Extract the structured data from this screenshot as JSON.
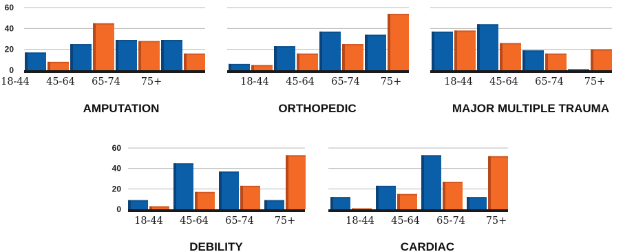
{
  "colors": {
    "series_a": "#0a5fa8",
    "series_a_shade": "#0b4378",
    "series_b": "#f26a26",
    "series_b_shade": "#b9481a"
  },
  "chart_data": [
    {
      "type": "bar",
      "title": "AMPUTATION",
      "categories": [
        "18-44",
        "45-64",
        "65-74",
        "75+"
      ],
      "series": [
        {
          "values": [
            17,
            25,
            29,
            29
          ]
        },
        {
          "values": [
            8,
            45,
            28,
            16
          ]
        }
      ],
      "ylim": [
        0,
        60
      ],
      "yticks": [
        0,
        20,
        40,
        60
      ],
      "show_yticks": true,
      "grid": true
    },
    {
      "type": "bar",
      "title": "ORTHOPEDIC",
      "categories": [
        "18-44",
        "45-64",
        "65-74",
        "75+"
      ],
      "series": [
        {
          "values": [
            6,
            23,
            37,
            34
          ]
        },
        {
          "values": [
            5,
            16,
            25,
            54
          ]
        }
      ],
      "ylim": [
        0,
        60
      ],
      "yticks": [
        0,
        20,
        40,
        60
      ],
      "show_yticks": false,
      "grid": true
    },
    {
      "type": "bar",
      "title": "MAJOR MULTIPLE TRAUMA",
      "categories": [
        "18-44",
        "45-64",
        "65-74",
        "75+"
      ],
      "series": [
        {
          "values": [
            37,
            44,
            19,
            1
          ]
        },
        {
          "values": [
            38,
            26,
            16,
            20
          ]
        }
      ],
      "ylim": [
        0,
        60
      ],
      "yticks": [
        0,
        20,
        40,
        60
      ],
      "show_yticks": false,
      "grid": true
    },
    {
      "type": "bar",
      "title": "DEBILITY",
      "categories": [
        "18-44",
        "45-64",
        "65-74",
        "75+"
      ],
      "series": [
        {
          "values": [
            9,
            45,
            37,
            9
          ]
        },
        {
          "values": [
            3,
            17,
            23,
            53
          ]
        }
      ],
      "ylim": [
        0,
        60
      ],
      "yticks": [
        0,
        20,
        40,
        60
      ],
      "show_yticks": true,
      "grid": true
    },
    {
      "type": "bar",
      "title": "CARDIAC",
      "categories": [
        "18-44",
        "45-64",
        "65-74",
        "75+"
      ],
      "series": [
        {
          "values": [
            12,
            23,
            53,
            12
          ]
        },
        {
          "values": [
            1,
            15,
            27,
            52
          ]
        }
      ],
      "ylim": [
        0,
        60
      ],
      "yticks": [
        0,
        20,
        40,
        60
      ],
      "show_yticks": false,
      "grid": true
    }
  ]
}
